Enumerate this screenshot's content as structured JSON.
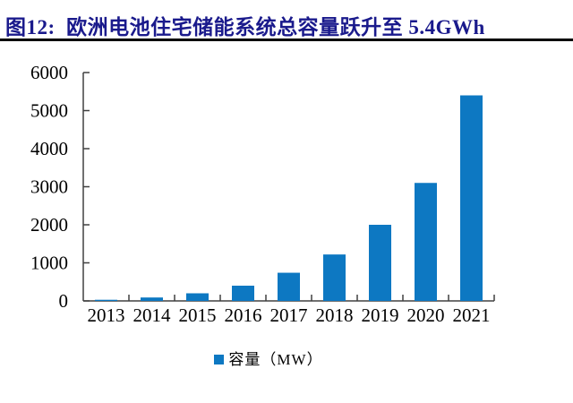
{
  "header": {
    "title": "图12:  欧洲电池住宅储能系统总容量跃升至 5.4GWh",
    "title_color": "#1a1a8c",
    "rule_color": "#000000"
  },
  "chart_data": {
    "type": "bar",
    "title": "欧洲电池住宅储能系统总容量跃升至5.4GWh",
    "categories": [
      "2013",
      "2014",
      "2015",
      "2016",
      "2017",
      "2018",
      "2019",
      "2020",
      "2021"
    ],
    "series": [
      {
        "name": "容量（MW）",
        "values": [
          30,
          90,
          200,
          400,
          740,
          1220,
          2000,
          3100,
          5400
        ]
      }
    ],
    "xlabel": "",
    "ylabel": "",
    "ylim": [
      0,
      6000
    ],
    "yticks": [
      0,
      1000,
      2000,
      3000,
      4000,
      5000,
      6000
    ],
    "grid": false,
    "bar_color": "#0d78c2",
    "axis_color": "#404040",
    "tick_label_color": "#000000",
    "legend": {
      "label": "容量（MW）",
      "position": "bottom",
      "swatch_color": "#0d78c2"
    }
  }
}
